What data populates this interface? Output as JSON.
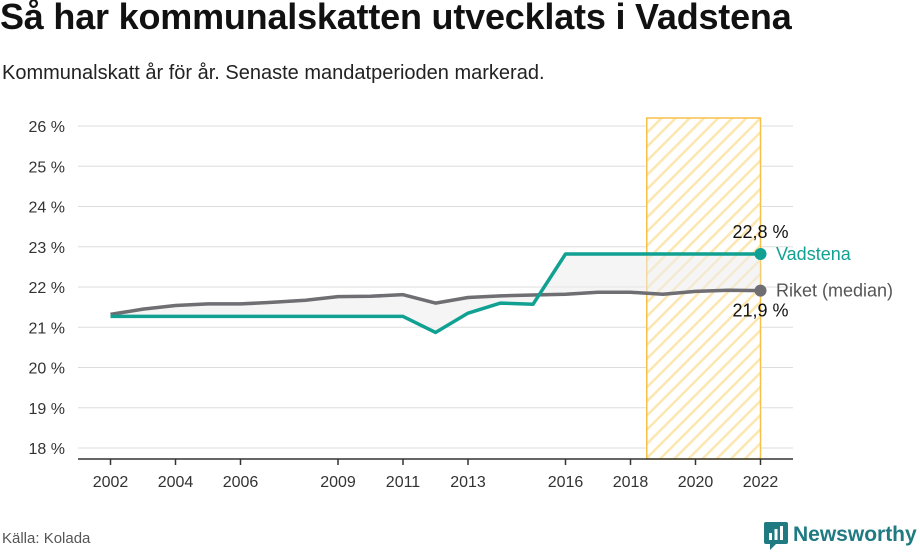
{
  "header": {
    "title": "Så har kommunalskatten utvecklats i Vadstena",
    "subtitle": "Kommunalskatt år för år. Senaste mandatperioden markerad."
  },
  "footer": {
    "source": "Källa: Kolada",
    "brand": "Newsworthy",
    "brand_icon": "newsworthy-logo-icon"
  },
  "colors": {
    "vadstena": "#11a192",
    "riket": "#6e6e73",
    "highlight_fill": "#fde7b0",
    "highlight_stroke": "#f7c04a",
    "brand": "#1f7a82"
  },
  "chart_data": {
    "type": "line",
    "x": [
      2002,
      2003,
      2004,
      2005,
      2006,
      2007,
      2008,
      2009,
      2010,
      2011,
      2012,
      2013,
      2014,
      2015,
      2016,
      2017,
      2018,
      2019,
      2020,
      2021,
      2022
    ],
    "x_ticks": [
      2002,
      2004,
      2006,
      2009,
      2011,
      2013,
      2016,
      2018,
      2020,
      2022
    ],
    "y_ticks": [
      "18 %",
      "19 %",
      "20 %",
      "21 %",
      "22 %",
      "23 %",
      "24 %",
      "25 %",
      "26 %"
    ],
    "ylim": [
      18,
      26
    ],
    "xlim": [
      2001,
      2023
    ],
    "highlight_period": [
      2018.5,
      2022
    ],
    "series": [
      {
        "name": "Vadstena",
        "values": [
          21.27,
          21.27,
          21.27,
          21.27,
          21.27,
          21.27,
          21.27,
          21.27,
          21.27,
          21.27,
          20.87,
          21.35,
          21.6,
          21.57,
          22.82,
          22.82,
          22.82,
          22.82,
          22.82,
          22.82,
          22.82
        ],
        "end_label": "22,8 %"
      },
      {
        "name": "Riket (median)",
        "values": [
          21.32,
          21.45,
          21.54,
          21.58,
          21.58,
          21.62,
          21.67,
          21.76,
          21.77,
          21.81,
          21.6,
          21.74,
          21.78,
          21.8,
          21.82,
          21.87,
          21.87,
          21.82,
          21.89,
          21.92,
          21.91
        ],
        "end_label": "21,9 %"
      }
    ],
    "grid": true
  }
}
